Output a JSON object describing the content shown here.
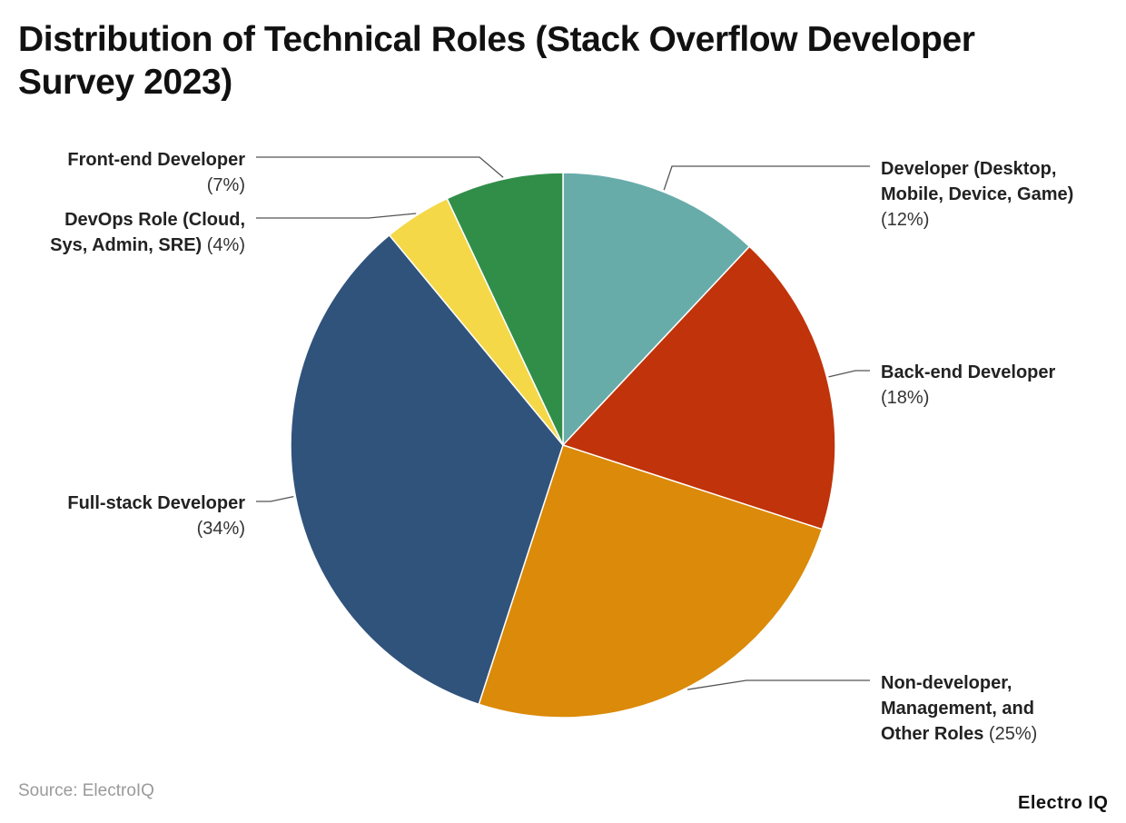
{
  "chart_data": {
    "type": "pie",
    "title": "Distribution of Technical Roles (Stack Overflow Developer Survey 2023)",
    "slices": [
      {
        "label": "Developer (Desktop, Mobile, Device, Game)",
        "value": 12,
        "value_label": "(12%)",
        "color": "#68ACAA",
        "label_lines": [
          "Developer (Desktop,",
          "Mobile, Device, Game)"
        ]
      },
      {
        "label": "Back-end Developer",
        "value": 18,
        "value_label": "(18%)",
        "color": "#C1330A",
        "label_lines": [
          "Back-end Developer"
        ]
      },
      {
        "label": "Non-developer, Management, and Other Roles",
        "value": 25,
        "value_label": "(25%)",
        "color": "#DB8A09",
        "label_lines": [
          "Non-developer,",
          "Management, and",
          "Other Roles"
        ]
      },
      {
        "label": "Full-stack Developer",
        "value": 34,
        "value_label": "(34%)",
        "color": "#30537C",
        "label_lines": [
          "Full-stack Developer"
        ]
      },
      {
        "label": "DevOps Role (Cloud, Sys, Admin, SRE)",
        "value": 4,
        "value_label": "(4%)",
        "color": "#F4D848",
        "label_lines": [
          "DevOps Role (Cloud,",
          "Sys, Admin, SRE)"
        ]
      },
      {
        "label": "Front-end Developer",
        "value": 7,
        "value_label": "(7%)",
        "color": "#318E49",
        "label_lines": [
          "Front-end Developer"
        ]
      }
    ]
  },
  "source": "Source: ElectroIQ",
  "brand": "Electro IQ"
}
